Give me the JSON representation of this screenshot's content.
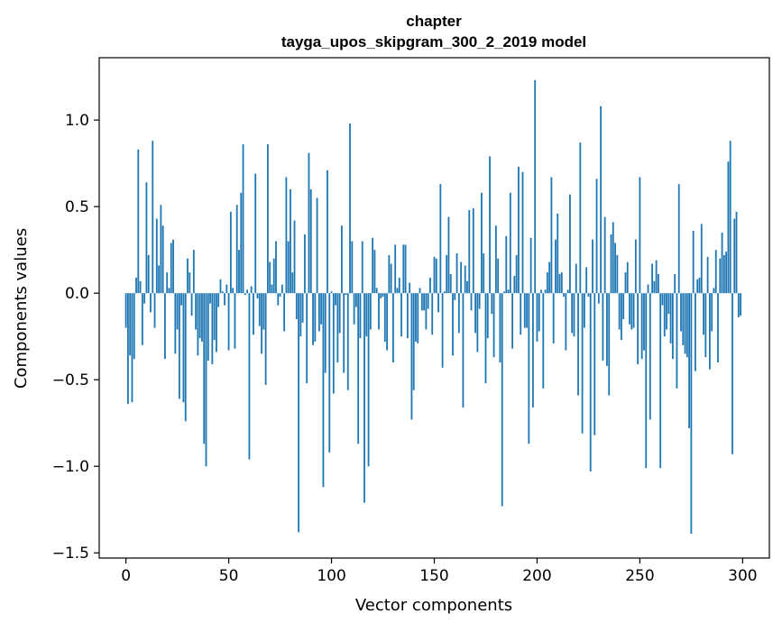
{
  "chart_data": {
    "type": "bar",
    "title_line1": "chapter",
    "title_line2": "tayga_upos_skipgram_300_2_2019 model",
    "xlabel": "Vector components",
    "ylabel": "Components values",
    "xlim": [
      -13,
      313
    ],
    "ylim": [
      -1.53,
      1.36
    ],
    "xticks": [
      0,
      50,
      100,
      150,
      200,
      250,
      300
    ],
    "xtick_labels": [
      "0",
      "50",
      "100",
      "150",
      "200",
      "250",
      "300"
    ],
    "yticks": [
      -1.5,
      -1.0,
      -0.5,
      0.0,
      0.5,
      1.0
    ],
    "ytick_labels": [
      "−1.5",
      "−1.0",
      "−0.5",
      "0.0",
      "0.5",
      "1.0"
    ],
    "bar_color": "#1f77b4",
    "grid": false,
    "x": "indices 0..299",
    "values": [
      -0.2,
      -0.64,
      -0.36,
      -0.63,
      -0.38,
      0.09,
      0.83,
      0.07,
      -0.3,
      -0.06,
      0.64,
      0.22,
      -0.11,
      0.88,
      -0.2,
      0.43,
      0.16,
      0.51,
      0.39,
      -0.38,
      0.12,
      0.03,
      0.29,
      0.31,
      -0.35,
      -0.21,
      -0.61,
      -0.07,
      -0.63,
      -0.74,
      0.2,
      0.12,
      -0.13,
      0.25,
      -0.21,
      -0.36,
      -0.26,
      -0.28,
      -0.87,
      -1.0,
      -0.39,
      -0.06,
      -0.41,
      -0.27,
      -0.34,
      -0.08,
      0.08,
      0.01,
      -0.07,
      0.05,
      -0.33,
      0.47,
      0.03,
      -0.32,
      0.51,
      0.25,
      0.58,
      0.86,
      -0.01,
      0.02,
      -0.96,
      0.04,
      -0.24,
      0.69,
      -0.03,
      -0.19,
      -0.35,
      -0.21,
      -0.53,
      0.86,
      0.18,
      0.05,
      0.2,
      0.3,
      -0.07,
      -0.02,
      0.05,
      -0.22,
      0.67,
      0.3,
      0.6,
      0.12,
      0.42,
      -0.15,
      -1.38,
      -0.25,
      -0.17,
      0.34,
      -0.52,
      0.81,
      0.6,
      -0.3,
      -0.28,
      0.55,
      -0.22,
      -0.18,
      -1.12,
      -0.46,
      0.71,
      -0.92,
      0.01,
      -0.58,
      -0.07,
      -0.4,
      -0.23,
      0.39,
      -0.46,
      -0.01,
      -0.56,
      0.98,
      0.3,
      -0.18,
      -0.08,
      -0.87,
      -0.26,
      0.3,
      -1.21,
      -0.25,
      -1.0,
      -0.21,
      0.32,
      0.25,
      0.03,
      -0.21,
      -0.03,
      -0.02,
      -0.28,
      -0.33,
      0.22,
      0.17,
      -0.4,
      0.28,
      0.03,
      0.09,
      -0.25,
      0.28,
      0.28,
      -0.26,
      0.06,
      -0.73,
      -0.56,
      -0.28,
      -0.29,
      0.03,
      -0.1,
      -0.1,
      -0.21,
      -0.09,
      0.09,
      -0.24,
      0.21,
      0.2,
      -0.11,
      0.63,
      -0.43,
      0.01,
      0.22,
      0.44,
      0.11,
      -0.36,
      -0.04,
      0.23,
      -0.23,
      0.18,
      -0.66,
      0.16,
      0.07,
      0.48,
      -0.1,
      0.49,
      -0.23,
      -0.34,
      -0.09,
      0.58,
      0.23,
      -0.52,
      -0.26,
      0.79,
      -0.12,
      -0.37,
      0.39,
      0.2,
      -0.4,
      -1.23,
      0.01,
      0.33,
      0.02,
      0.58,
      -0.32,
      0.1,
      0.22,
      0.73,
      -0.24,
      0.7,
      -0.2,
      -0.2,
      -0.87,
      0.32,
      -0.66,
      1.23,
      -0.28,
      -0.22,
      0.02,
      -0.55,
      0.02,
      0.12,
      0.18,
      0.67,
      -0.29,
      0.31,
      0.46,
      0.11,
      0.12,
      -0.02,
      -0.33,
      0.02,
      0.57,
      -0.23,
      -0.25,
      0.17,
      -0.59,
      0.87,
      -0.81,
      -0.2,
      0.15,
      -0.02,
      -1.03,
      0.31,
      -0.82,
      0.66,
      -0.06,
      1.08,
      -0.39,
      0.44,
      -0.42,
      -0.59,
      0.34,
      0.41,
      0.29,
      0.22,
      -0.21,
      -0.27,
      -0.15,
      0.12,
      0.18,
      -0.18,
      -0.21,
      -0.2,
      0.31,
      -0.41,
      0.67,
      -0.38,
      -0.33,
      -1.01,
      0.05,
      -0.73,
      0.17,
      0.07,
      0.19,
      0.11,
      -1.01,
      -0.07,
      -0.25,
      -0.21,
      -0.12,
      -0.29,
      -0.38,
      0.11,
      -0.55,
      0.63,
      -0.22,
      -0.3,
      -0.35,
      -0.37,
      -0.78,
      -1.39,
      0.36,
      -0.45,
      0.08,
      0.09,
      0.4,
      -0.24,
      -0.37,
      0.21,
      -0.44,
      -0.22,
      0.03,
      0.25,
      -0.4,
      0.2,
      0.35,
      0.22,
      0.24,
      0.76,
      0.88,
      -0.93,
      0.43,
      0.47,
      -0.14,
      -0.13
    ]
  }
}
